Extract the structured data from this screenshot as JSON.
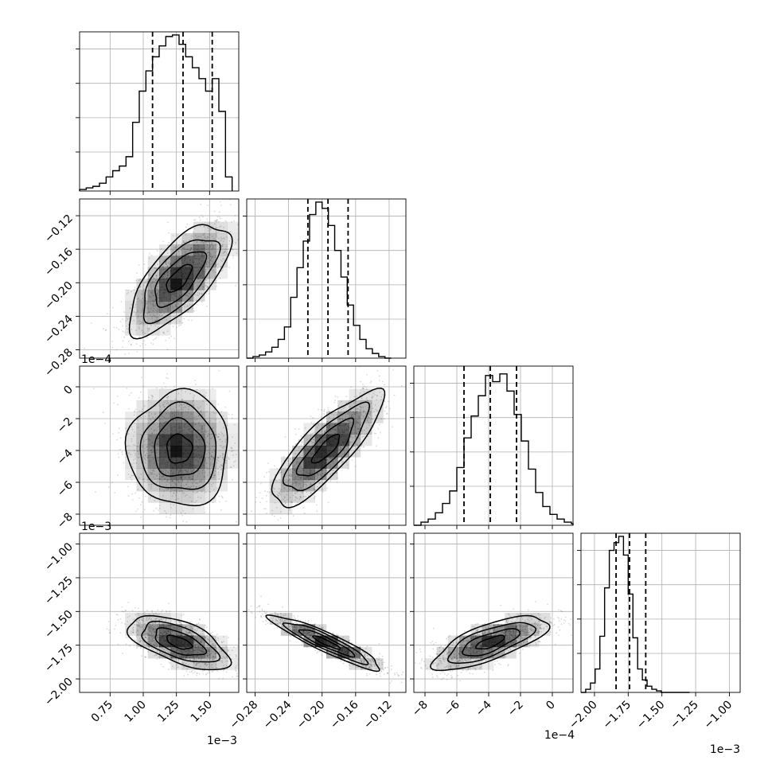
{
  "chart_data": {
    "type": "corner",
    "parameters": [
      {
        "index": 0,
        "range": [
          0.52,
          1.72
        ],
        "ticks": [
          0.75,
          1.0,
          1.25,
          1.5
        ],
        "tick_labels": [
          "0.75",
          "1.00",
          "1.25",
          "1.50"
        ],
        "offset_text": "1e−3",
        "quantiles": [
          1.07,
          1.3,
          1.52
        ],
        "histogram": {
          "bin_start": 0.52,
          "bin_width": 0.05,
          "heights": [
            1,
            2,
            3,
            5,
            9,
            13,
            16,
            22,
            44,
            64,
            77,
            86,
            93,
            99,
            100,
            94,
            86,
            79,
            72,
            64,
            72,
            51,
            9
          ]
        },
        "hist_ylim": [
          0,
          102
        ]
      },
      {
        "index": 1,
        "range": [
          -0.29,
          -0.1
        ],
        "ticks": [
          -0.28,
          -0.24,
          -0.2,
          -0.16,
          -0.12
        ],
        "tick_labels": [
          "−0.28",
          "−0.24",
          "−0.20",
          "−0.16",
          "−0.12"
        ],
        "offset_text": "",
        "quantiles": [
          -0.217,
          -0.193,
          -0.169
        ],
        "histogram": {
          "bin_start": -0.29,
          "bin_width": 0.0075,
          "heights": [
            0,
            1,
            2,
            4,
            7,
            12,
            20,
            39,
            58,
            75,
            92,
            100,
            96,
            85,
            69,
            52,
            34,
            21,
            12,
            6,
            3,
            1,
            0
          ]
        },
        "hist_ylim": [
          0,
          102
        ]
      },
      {
        "index": 2,
        "range": [
          -8.7,
          1.3
        ],
        "ticks": [
          -8,
          -6,
          -4,
          -2,
          0
        ],
        "tick_labels": [
          "−8",
          "−6",
          "−4",
          "−2",
          "0"
        ],
        "offset_text": "1e−4",
        "quantiles": [
          -5.55,
          -3.9,
          -2.25
        ],
        "histogram": {
          "bin_start": -8.7,
          "bin_width": 0.45,
          "heights": [
            0,
            2,
            4,
            8,
            14,
            22,
            37,
            56,
            70,
            83,
            96,
            92,
            97,
            86,
            71,
            54,
            36,
            21,
            12,
            7,
            4,
            2,
            1
          ]
        },
        "hist_ylim": [
          0,
          102
        ]
      },
      {
        "index": 3,
        "range": [
          -2.1,
          -0.92
        ],
        "ticks": [
          -2.0,
          -1.75,
          -1.5,
          -1.25,
          -1.0
        ],
        "tick_labels": [
          "−2.00",
          "−1.75",
          "−1.50",
          "−1.25",
          "−1.00"
        ],
        "offset_text": "1e−3",
        "quantiles": [
          -1.84,
          -1.74,
          -1.62
        ],
        "histogram": {
          "bin_start": -2.1,
          "bin_width": 0.035,
          "heights": [
            0,
            2,
            6,
            15,
            36,
            67,
            91,
            96,
            100,
            88,
            63,
            35,
            15,
            8,
            4,
            2,
            1,
            0,
            0,
            0,
            0,
            0,
            0
          ]
        },
        "hist_ylim": [
          0,
          102
        ]
      }
    ],
    "pairs": [
      {
        "x": 0,
        "y": 1,
        "mean": [
          1.27,
          -0.195
        ],
        "sd": [
          0.19,
          0.033
        ],
        "rho": 0.7
      },
      {
        "x": 0,
        "y": 2,
        "mean": [
          1.27,
          -3.9
        ],
        "sd": [
          0.19,
          1.8
        ],
        "rho": 0.0
      },
      {
        "x": 0,
        "y": 3,
        "mean": [
          1.27,
          -1.73
        ],
        "sd": [
          0.19,
          0.1
        ],
        "rho": -0.6
      },
      {
        "x": 1,
        "y": 2,
        "mean": [
          -0.195,
          -3.9
        ],
        "sd": [
          0.033,
          1.8
        ],
        "rho": 0.82
      },
      {
        "x": 1,
        "y": 3,
        "mean": [
          -0.195,
          -1.73
        ],
        "sd": [
          0.033,
          0.1
        ],
        "rho": -0.92
      },
      {
        "x": 2,
        "y": 3,
        "mean": [
          -3.9,
          -1.73
        ],
        "sd": [
          1.8,
          0.1
        ],
        "rho": 0.72
      }
    ],
    "contour_levels_sigma": [
      0.5,
      1.0,
      1.5,
      2.0
    ],
    "grid": true,
    "colors": {
      "points": "#555555",
      "lines": "#000000",
      "density": "#000000"
    }
  }
}
